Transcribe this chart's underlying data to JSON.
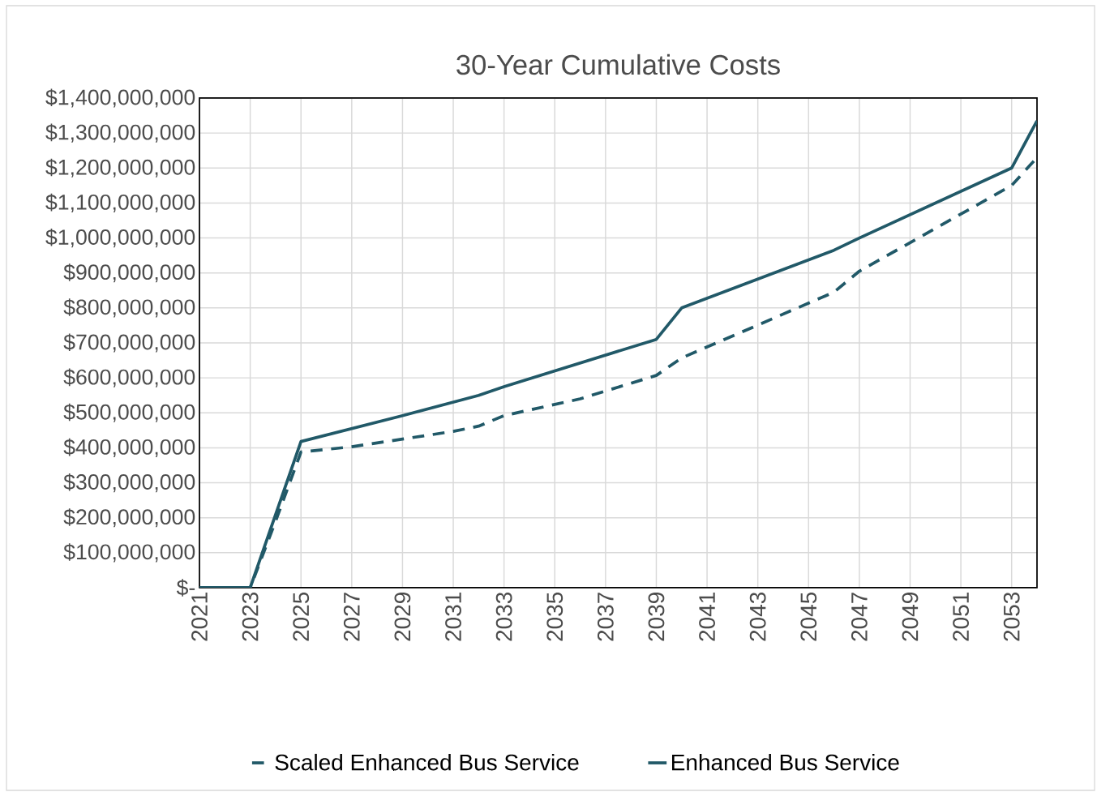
{
  "chart_data": {
    "type": "line",
    "title": "30-Year Cumulative Costs",
    "xlim": [
      2021,
      2054
    ],
    "xticks": [
      2021,
      2023,
      2025,
      2027,
      2029,
      2031,
      2033,
      2035,
      2037,
      2039,
      2041,
      2043,
      2045,
      2047,
      2049,
      2051,
      2053
    ],
    "ylim": [
      0,
      1400000000
    ],
    "yticks": [
      {
        "value": 0,
        "label": "$-"
      },
      {
        "value": 100000000,
        "label": "$100,000,000"
      },
      {
        "value": 200000000,
        "label": "$200,000,000"
      },
      {
        "value": 300000000,
        "label": "$300,000,000"
      },
      {
        "value": 400000000,
        "label": "$400,000,000"
      },
      {
        "value": 500000000,
        "label": "$500,000,000"
      },
      {
        "value": 600000000,
        "label": "$600,000,000"
      },
      {
        "value": 700000000,
        "label": "$700,000,000"
      },
      {
        "value": 800000000,
        "label": "$800,000,000"
      },
      {
        "value": 900000000,
        "label": "$900,000,000"
      },
      {
        "value": 1000000000,
        "label": "$1,000,000,000"
      },
      {
        "value": 1100000000,
        "label": "$1,100,000,000"
      },
      {
        "value": 1200000000,
        "label": "$1,200,000,000"
      },
      {
        "value": 1300000000,
        "label": "$1,300,000,000"
      },
      {
        "value": 1400000000,
        "label": "$1,400,000,000"
      }
    ],
    "grid": true,
    "legend": "bottom",
    "series": [
      {
        "name": "Scaled Enhanced Bus Service",
        "color": "#215968",
        "line_style": "dashed",
        "x": [
          2021,
          2023,
          2024,
          2025,
          2027,
          2029,
          2031,
          2032,
          2033,
          2036,
          2039,
          2040,
          2046,
          2047,
          2053,
          2054
        ],
        "values": [
          0,
          0,
          190000000,
          388000000,
          403000000,
          425000000,
          447000000,
          462000000,
          492000000,
          540000000,
          607000000,
          657000000,
          845000000,
          905000000,
          1150000000,
          1230000000
        ]
      },
      {
        "name": "Enhanced Bus Service",
        "color": "#215968",
        "line_style": "solid",
        "x": [
          2021,
          2023,
          2025,
          2029,
          2032,
          2033,
          2039,
          2040,
          2046,
          2047,
          2053,
          2054
        ],
        "values": [
          0,
          0,
          418000000,
          492000000,
          550000000,
          575000000,
          710000000,
          800000000,
          965000000,
          1000000000,
          1200000000,
          1335000000
        ]
      }
    ]
  }
}
